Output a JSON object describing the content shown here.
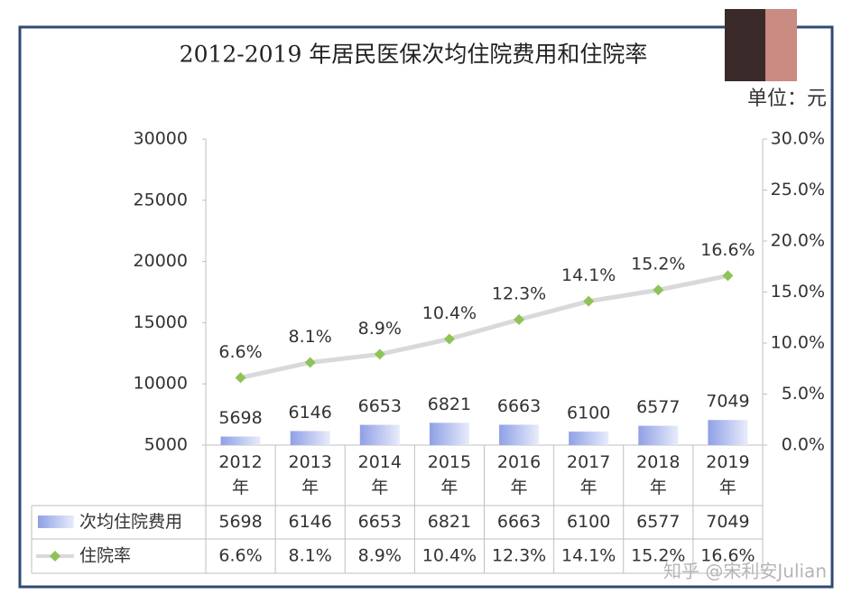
{
  "chart_data": {
    "type": "bar-line",
    "title": "2012-2019 年居民医保次均住院费用和住院率",
    "unit_label": "单位：元",
    "watermark": "知乎 @宋利安Julian",
    "categories": [
      "2012年",
      "2013年",
      "2014年",
      "2015年",
      "2016年",
      "2017年",
      "2018年",
      "2019年"
    ],
    "series": [
      {
        "name": "次均住院费用",
        "type": "bar",
        "color": "#aab8ee",
        "values": [
          5698,
          6146,
          6653,
          6821,
          6663,
          6100,
          6577,
          7049
        ]
      },
      {
        "name": "住院率",
        "type": "line",
        "axis": "y2",
        "color": "#8fc258",
        "line_color": "#d9d9d9",
        "values": [
          6.6,
          8.1,
          8.9,
          10.4,
          12.3,
          14.1,
          15.2,
          16.6
        ],
        "value_labels": [
          "6.6%",
          "8.1%",
          "8.9%",
          "10.4%",
          "12.3%",
          "14.1%",
          "15.2%",
          "16.6%"
        ]
      }
    ],
    "ylim": [
      5000,
      30000
    ],
    "yticks": [
      5000,
      10000,
      15000,
      20000,
      25000,
      30000
    ],
    "y2lim": [
      0,
      30
    ],
    "y2ticks": [
      {
        "value": 0,
        "label": "0.0%"
      },
      {
        "value": 5,
        "label": "5.0%"
      },
      {
        "value": 10,
        "label": "10.0%"
      },
      {
        "value": 15,
        "label": "15.0%"
      },
      {
        "value": 20,
        "label": "20.0%"
      },
      {
        "value": 25,
        "label": "25.0%"
      },
      {
        "value": 30,
        "label": "30.0%"
      }
    ]
  }
}
